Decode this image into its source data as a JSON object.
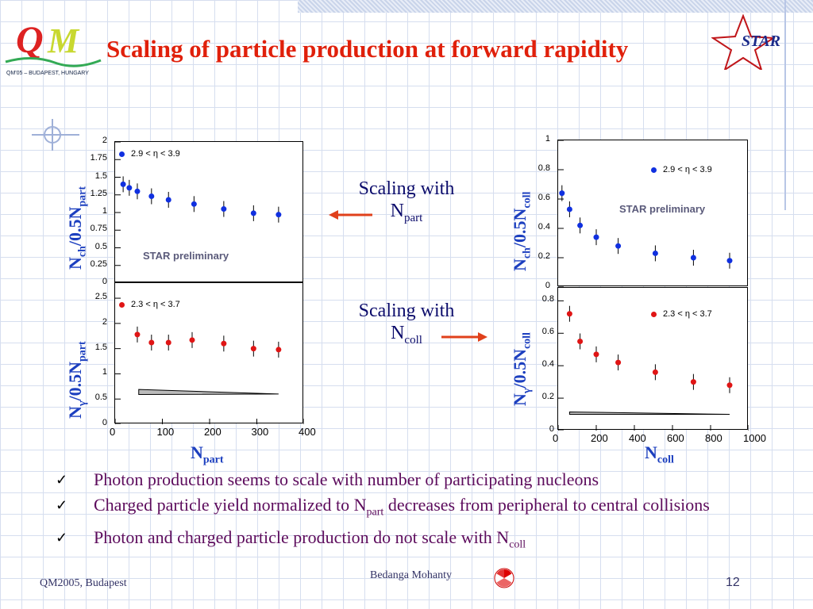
{
  "slide": {
    "title": "Scaling of particle production at forward rapidity",
    "logo_left_text": "QM'05 – BUDAPEST, HUNGARY",
    "logo_right_text": "STAR",
    "preliminary": "STAR preliminary",
    "ylabel_ch": [
      "N",
      "ch",
      "/0.5N",
      "part"
    ],
    "ylabel_gamma": [
      "N",
      "γ",
      "/0.5N",
      "part"
    ],
    "ylabel_ch_coll": [
      "N",
      "ch",
      "/0.5N",
      "coll"
    ],
    "ylabel_gamma_coll": [
      "N",
      "γ",
      "/0.5N",
      "coll"
    ],
    "xlabel_left": [
      "N",
      "part"
    ],
    "xlabel_right": [
      "N",
      "coll"
    ],
    "scaling1": [
      "Scaling with",
      "N",
      "part"
    ],
    "scaling2": [
      "Scaling with",
      "N",
      "coll"
    ],
    "bullets": [
      {
        "text": "Photon production seems to scale with number of participating nucleons"
      },
      {
        "text": "Charged particle yield normalized to N",
        "sub": "part",
        "after": " decreases from peripheral to central collisions"
      },
      {
        "text": " Photon and charged particle production do not scale with N",
        "sub": "coll"
      }
    ],
    "checkmark": "✓",
    "footer_left": "QM2005, Budapest",
    "footer_mid": "Bedanga Mohanty",
    "page_number": "12",
    "colors": {
      "title": "#e0200b",
      "axis_label": "#1c3fbf",
      "blue": "#1030e0",
      "red": "#e01515",
      "bullet": "#5c0b5c"
    }
  },
  "chart_data": [
    {
      "type": "scatter",
      "legend": "2.9 < η < 3.9",
      "x": [
        17,
        30,
        47,
        77,
        113,
        167,
        230,
        293,
        346
      ],
      "y": [
        1.4,
        1.35,
        1.3,
        1.23,
        1.18,
        1.12,
        1.05,
        0.99,
        0.97
      ],
      "xlim": [
        0,
        400
      ],
      "ylim": [
        0,
        2
      ],
      "yticks": [
        0,
        0.25,
        0.5,
        0.75,
        1,
        1.25,
        1.5,
        1.75,
        2
      ],
      "ytick_labels": [
        "0",
        "0.25",
        "0.5",
        "0.75",
        "1",
        "1.25",
        "1.5",
        "1.75",
        "2"
      ],
      "color": "#1030e0"
    },
    {
      "type": "scatter",
      "legend": "2.3 < η < 3.7",
      "x": [
        47,
        77,
        113,
        163,
        230,
        293,
        346
      ],
      "y": [
        1.78,
        1.62,
        1.62,
        1.67,
        1.6,
        1.5,
        1.48
      ],
      "xlim": [
        0,
        400
      ],
      "ylim": [
        0,
        2.8
      ],
      "yticks": [
        0,
        0.5,
        1,
        1.5,
        2,
        2.5
      ],
      "ytick_labels": [
        "0",
        "0.5",
        "1",
        "1.5",
        "2",
        "2.5"
      ],
      "xticks": [
        0,
        100,
        200,
        300,
        400
      ],
      "xtick_labels": [
        "0",
        "100",
        "200",
        "300",
        "400"
      ],
      "color": "#e01515"
    },
    {
      "type": "scatter",
      "legend": "2.9 < η < 3.9",
      "x": [
        20,
        60,
        115,
        200,
        315,
        510,
        710,
        900
      ],
      "y": [
        0.64,
        0.53,
        0.42,
        0.34,
        0.28,
        0.23,
        0.2,
        0.18
      ],
      "xlim": [
        0,
        1000
      ],
      "ylim": [
        0,
        1
      ],
      "yticks": [
        0,
        0.2,
        0.4,
        0.6,
        0.8,
        1
      ],
      "ytick_labels": [
        "0",
        "0.2",
        "0.4",
        "0.6",
        "0.8",
        "1"
      ],
      "color": "#1030e0"
    },
    {
      "type": "scatter",
      "legend": "2.3 < η < 3.7",
      "x": [
        60,
        115,
        200,
        315,
        510,
        710,
        900
      ],
      "y": [
        0.72,
        0.55,
        0.47,
        0.42,
        0.36,
        0.3,
        0.28
      ],
      "xlim": [
        0,
        1000
      ],
      "ylim": [
        0,
        0.88
      ],
      "yticks": [
        0,
        0.2,
        0.4,
        0.6,
        0.8
      ],
      "ytick_labels": [
        "0",
        "0.2",
        "0.4",
        "0.6",
        "0.8"
      ],
      "xticks": [
        0,
        200,
        400,
        600,
        800,
        1000
      ],
      "xtick_labels": [
        "0",
        "200",
        "400",
        "600",
        "800",
        "1000"
      ],
      "color": "#e01515"
    }
  ]
}
